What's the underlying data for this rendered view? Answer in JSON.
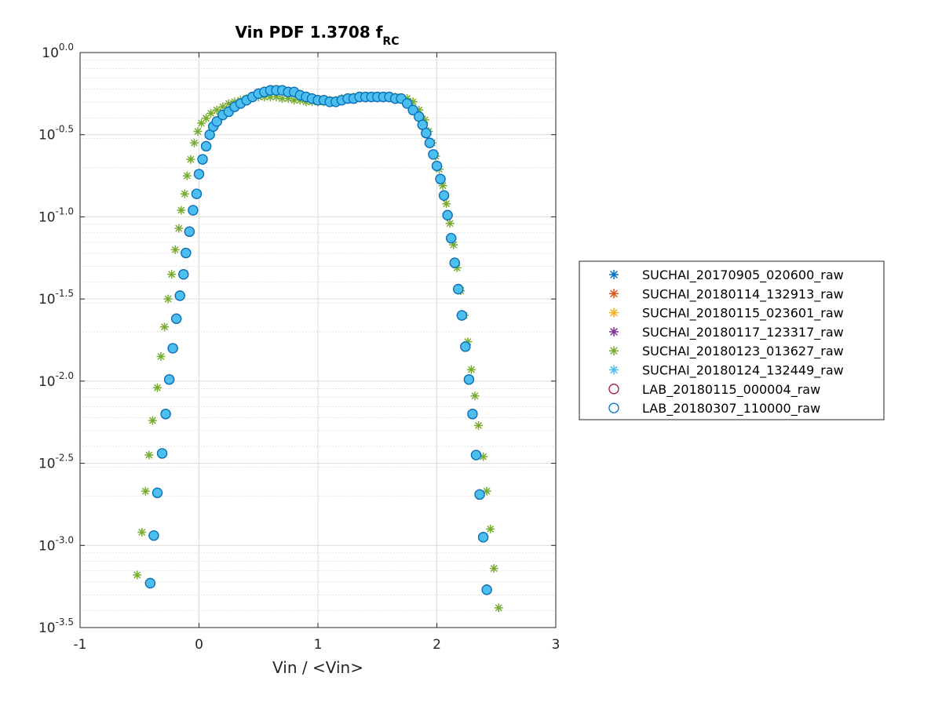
{
  "chart_data": {
    "type": "scatter",
    "title": "Vin PDF 1.3708 f",
    "title_subscript": "RC",
    "xlabel": "Vin / <Vin>",
    "ylabel": "",
    "xlim": [
      -1,
      3
    ],
    "ylim_log10": [
      -3.5,
      0.0
    ],
    "y_scale": "log",
    "grid": true,
    "minor_grid": true,
    "x_ticks": [
      -1,
      0,
      1,
      2,
      3
    ],
    "x_tick_labels": [
      "-1",
      "0",
      "1",
      "2",
      "3"
    ],
    "y_ticks_log10": [
      0.0,
      -0.5,
      -1.0,
      -1.5,
      -2.0,
      -2.5,
      -3.0,
      -3.5
    ],
    "y_tick_labels": [
      {
        "base": "10",
        "exp": "0.0"
      },
      {
        "base": "10",
        "exp": "-0.5"
      },
      {
        "base": "10",
        "exp": "-1.0"
      },
      {
        "base": "10",
        "exp": "-1.5"
      },
      {
        "base": "10",
        "exp": "-2.0"
      },
      {
        "base": "10",
        "exp": "-2.5"
      },
      {
        "base": "10",
        "exp": "-3.0"
      },
      {
        "base": "10",
        "exp": "-3.5"
      }
    ],
    "legend_position": "outside-right",
    "series": [
      {
        "name": "SUCHAI_20170905_020600_raw",
        "marker": "asterisk",
        "color": "#0072BD",
        "profile": "main",
        "x": [
          -0.41,
          -0.38,
          -0.35,
          -0.31,
          -0.28,
          -0.25,
          -0.22,
          -0.19,
          -0.16,
          -0.13,
          -0.11,
          -0.08,
          -0.05,
          -0.02,
          0.0,
          0.03,
          0.06,
          0.09,
          0.12,
          0.15,
          0.2,
          0.25,
          0.3,
          0.35,
          0.4,
          0.45,
          0.5,
          0.55,
          0.6,
          0.65,
          0.7,
          0.75,
          0.8,
          0.85,
          0.9,
          0.95,
          1.0,
          1.05,
          1.1,
          1.15,
          1.2,
          1.25,
          1.3,
          1.35,
          1.4,
          1.45,
          1.5,
          1.55,
          1.6,
          1.65,
          1.7,
          1.75,
          1.8,
          1.85,
          1.88,
          1.91,
          1.94,
          1.97,
          2.0,
          2.03,
          2.06,
          2.09,
          2.12,
          2.15,
          2.18,
          2.21,
          2.24,
          2.27,
          2.3,
          2.33,
          2.36,
          2.39,
          2.42
        ],
        "logy": [
          -3.23,
          -2.94,
          -2.68,
          -2.44,
          -2.2,
          -1.99,
          -1.8,
          -1.62,
          -1.48,
          -1.35,
          -1.22,
          -1.09,
          -0.96,
          -0.86,
          -0.74,
          -0.65,
          -0.57,
          -0.5,
          -0.45,
          -0.42,
          -0.38,
          -0.36,
          -0.33,
          -0.31,
          -0.29,
          -0.27,
          -0.25,
          -0.24,
          -0.23,
          -0.23,
          -0.23,
          -0.24,
          -0.24,
          -0.26,
          -0.27,
          -0.28,
          -0.29,
          -0.29,
          -0.3,
          -0.3,
          -0.29,
          -0.28,
          -0.28,
          -0.27,
          -0.27,
          -0.27,
          -0.27,
          -0.27,
          -0.27,
          -0.28,
          -0.28,
          -0.31,
          -0.35,
          -0.39,
          -0.44,
          -0.49,
          -0.55,
          -0.62,
          -0.69,
          -0.77,
          -0.87,
          -0.99,
          -1.13,
          -1.28,
          -1.44,
          -1.6,
          -1.79,
          -1.99,
          -2.2,
          -2.45,
          -2.69,
          -2.95,
          -3.27
        ]
      },
      {
        "name": "SUCHAI_20180114_132913_raw",
        "marker": "asterisk",
        "color": "#D95319",
        "profile": "main"
      },
      {
        "name": "SUCHAI_20180115_023601_raw",
        "marker": "asterisk",
        "color": "#EDB120",
        "profile": "main"
      },
      {
        "name": "SUCHAI_20180117_123317_raw",
        "marker": "asterisk",
        "color": "#7E2F8E",
        "profile": "main"
      },
      {
        "name": "SUCHAI_20180123_013627_raw",
        "marker": "asterisk",
        "color": "#77AC30",
        "profile": "wide",
        "x": [
          -0.52,
          -0.48,
          -0.45,
          -0.42,
          -0.39,
          -0.35,
          -0.32,
          -0.29,
          -0.26,
          -0.23,
          -0.2,
          -0.17,
          -0.15,
          -0.12,
          -0.1,
          -0.07,
          -0.04,
          -0.01,
          0.02,
          0.06,
          0.1,
          0.15,
          0.2,
          0.25,
          0.3,
          0.35,
          0.4,
          0.45,
          0.5,
          0.55,
          0.6,
          0.65,
          0.7,
          0.75,
          0.8,
          0.85,
          0.9,
          0.95,
          1.0,
          1.05,
          1.1,
          1.15,
          1.2,
          1.25,
          1.3,
          1.35,
          1.4,
          1.45,
          1.5,
          1.55,
          1.6,
          1.65,
          1.7,
          1.75,
          1.8,
          1.85,
          1.9,
          1.93,
          1.96,
          1.99,
          2.02,
          2.05,
          2.08,
          2.11,
          2.14,
          2.17,
          2.2,
          2.23,
          2.26,
          2.29,
          2.32,
          2.35,
          2.39,
          2.42,
          2.45,
          2.48,
          2.52
        ],
        "logy": [
          -3.18,
          -2.92,
          -2.67,
          -2.45,
          -2.24,
          -2.04,
          -1.85,
          -1.67,
          -1.5,
          -1.35,
          -1.2,
          -1.07,
          -0.96,
          -0.86,
          -0.75,
          -0.65,
          -0.55,
          -0.48,
          -0.43,
          -0.4,
          -0.37,
          -0.35,
          -0.33,
          -0.31,
          -0.3,
          -0.29,
          -0.28,
          -0.27,
          -0.27,
          -0.27,
          -0.27,
          -0.27,
          -0.28,
          -0.28,
          -0.29,
          -0.29,
          -0.3,
          -0.3,
          -0.3,
          -0.3,
          -0.29,
          -0.29,
          -0.28,
          -0.28,
          -0.27,
          -0.27,
          -0.27,
          -0.27,
          -0.27,
          -0.27,
          -0.27,
          -0.27,
          -0.28,
          -0.28,
          -0.3,
          -0.35,
          -0.41,
          -0.48,
          -0.55,
          -0.63,
          -0.71,
          -0.81,
          -0.92,
          -1.04,
          -1.17,
          -1.31,
          -1.45,
          -1.6,
          -1.76,
          -1.93,
          -2.09,
          -2.27,
          -2.46,
          -2.67,
          -2.9,
          -3.14,
          -3.38
        ]
      },
      {
        "name": "SUCHAI_20180124_132449_raw",
        "marker": "asterisk",
        "color": "#4DBEEE",
        "profile": "main"
      },
      {
        "name": "LAB_20180115_000004_raw",
        "marker": "circle",
        "color": "#A2142F",
        "profile": "main"
      },
      {
        "name": "LAB_20180307_110000_raw",
        "marker": "circle",
        "color": "#0072BD",
        "profile": "main"
      }
    ]
  }
}
